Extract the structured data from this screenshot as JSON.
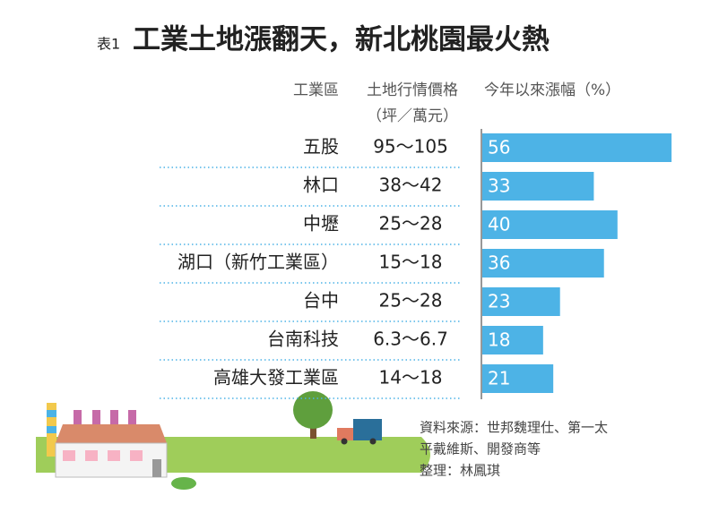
{
  "chart_data": {
    "type": "bar",
    "table_label": "表1",
    "title": "工業土地漲翻天，新北桃園最火熱",
    "column_headers": [
      "工業區",
      "土地行情價格",
      "今年以來漲幅（%）"
    ],
    "column_subheader": "（坪／萬元）",
    "categories": [
      "五股",
      "林口",
      "中壢",
      "湖口（新竹工業區）",
      "台中",
      "台南科技",
      "高雄大發工業區"
    ],
    "price_ranges": [
      "95～105",
      "38～42",
      "25～28",
      "15～18",
      "25～28",
      "6.3～6.7",
      "14～18"
    ],
    "values": [
      56,
      33,
      40,
      36,
      23,
      18,
      21
    ],
    "color": "#4db3e6",
    "source_lines": [
      "資料來源：世邦魏理仕、第一太",
      "平戴維斯、開發商等"
    ],
    "editor": "整理：林鳳琪"
  }
}
